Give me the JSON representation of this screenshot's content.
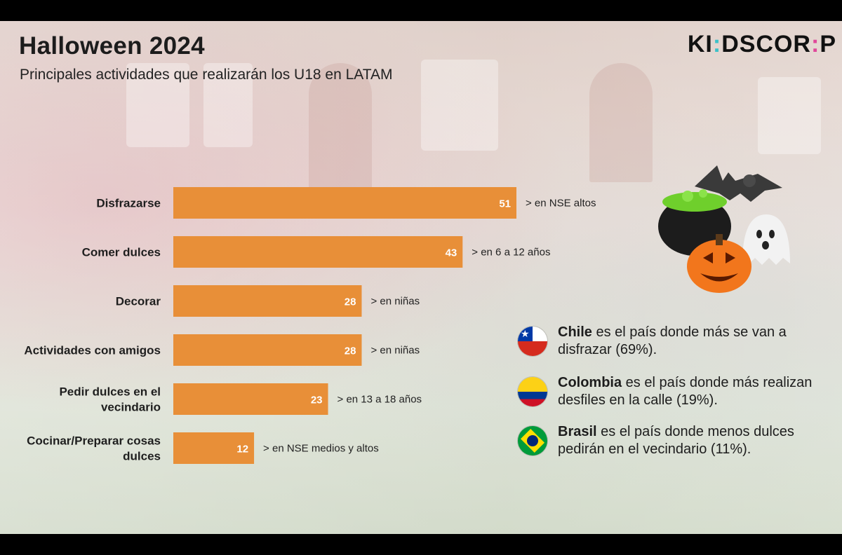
{
  "header": {
    "title": "Halloween 2024",
    "subtitle": "Principales actividades que realizarán los U18 en LATAM",
    "logo": {
      "part1": "KI",
      "dot1": ":",
      "part2": "DSCOR",
      "dot2": ":",
      "part3": "P"
    }
  },
  "chart_data": {
    "type": "bar",
    "orientation": "horizontal",
    "title": "Halloween 2024",
    "subtitle": "Principales actividades que realizarán los U18 en LATAM",
    "categories": [
      [
        "Disfrazarse"
      ],
      [
        "Comer dulces"
      ],
      [
        "Decorar"
      ],
      [
        "Actividades con amigos"
      ],
      [
        "Pedir dulces en el",
        "vecindario"
      ],
      [
        "Cocinar/Preparar cosas",
        "dulces"
      ]
    ],
    "values": [
      51,
      43,
      28,
      28,
      23,
      12
    ],
    "annotations": [
      "> en NSE altos",
      "> en 6 a 12 años",
      "> en niñas",
      "> en niñas",
      "> en 13 a 18 años",
      "> en NSE medios y altos"
    ],
    "xlim": [
      0,
      51
    ],
    "bar_color": "#e88f38",
    "grid": false,
    "legend": "none"
  },
  "facts": [
    {
      "country": "Chile",
      "text": " es el país donde más se van a disfrazar (69%).",
      "flag": "chile-flag"
    },
    {
      "country": "Colombia",
      "text": " es el país donde más realizan desfiles en la calle (19%).",
      "flag": "colombia-flag"
    },
    {
      "country": "Brasil",
      "text": " es el país donde menos dulces pedirán en el vecindario (11%).",
      "flag": "brasil-flag"
    }
  ],
  "colors": {
    "accent": "#e88f38",
    "logo_cyan": "#3cc1c8",
    "logo_pink": "#e0479a"
  }
}
